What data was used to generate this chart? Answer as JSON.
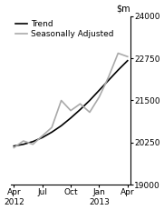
{
  "trend_x": [
    0,
    1,
    2,
    3,
    4,
    5,
    6,
    7,
    8,
    9,
    10,
    11,
    12
  ],
  "trend_y": [
    20150,
    20200,
    20280,
    20400,
    20560,
    20750,
    20980,
    21230,
    21500,
    21800,
    22100,
    22400,
    22680
  ],
  "sa_x": [
    0,
    1,
    2,
    3,
    4,
    5,
    6,
    7,
    8,
    9,
    10,
    11,
    12
  ],
  "sa_y": [
    20100,
    20300,
    20200,
    20450,
    20700,
    21500,
    21200,
    21400,
    21150,
    21600,
    22200,
    22900,
    22800
  ],
  "trend_color": "#000000",
  "sa_color": "#aaaaaa",
  "trend_linewidth": 1.2,
  "sa_linewidth": 1.2,
  "ylim": [
    19000,
    24000
  ],
  "yticks": [
    19000,
    20250,
    21500,
    22750,
    24000
  ],
  "ytick_labels": [
    "19000",
    "20250",
    "21500",
    "22750",
    "24000"
  ],
  "xticks": [
    0,
    3,
    6,
    9,
    12
  ],
  "xtick_labels": [
    "Apr\n2012",
    "Jul",
    "Oct",
    "Jan\n2013",
    "Apr"
  ],
  "legend_items": [
    "Trend",
    "Seasonally Adjusted"
  ],
  "background_color": "#ffffff",
  "legend_fontsize": 6.5,
  "axis_fontsize": 6.5,
  "ylabel_fontsize": 7
}
